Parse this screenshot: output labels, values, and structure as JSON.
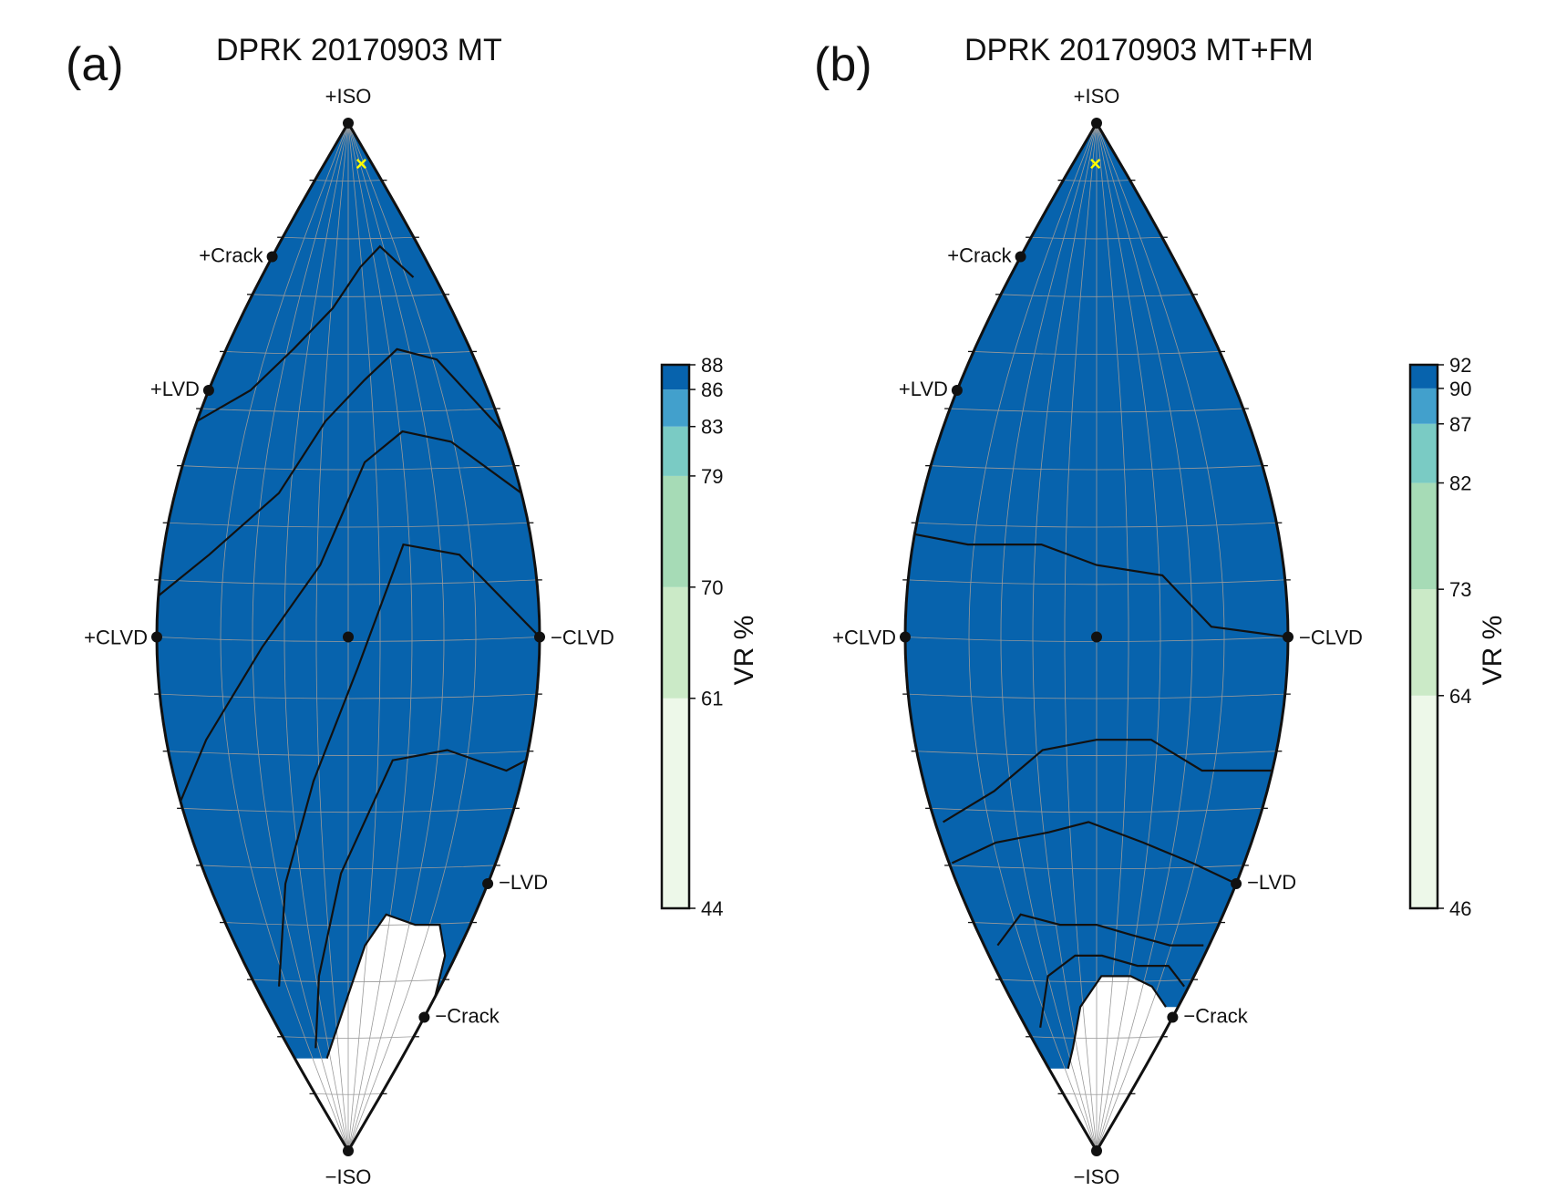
{
  "palette": {
    "edge": "#111111",
    "grid": "#9a9a9a",
    "marker": "#ffff00",
    "background": "#ffffff"
  },
  "chart_data": [
    {
      "type": "heatmap",
      "panel_label": "(a)",
      "title": "DPRK 20170903 MT",
      "projection": "Lune (source-type)",
      "colorbar": {
        "label": "VR %",
        "ticks": [
          44,
          61,
          70,
          79,
          83,
          86,
          88
        ],
        "bands": [
          {
            "from": 44,
            "to": 61,
            "color": "#edf8e9"
          },
          {
            "from": 61,
            "to": 70,
            "color": "#cbeac7"
          },
          {
            "from": 70,
            "to": 79,
            "color": "#a6dbb6"
          },
          {
            "from": 79,
            "to": 83,
            "color": "#7acbc4"
          },
          {
            "from": 83,
            "to": 86,
            "color": "#42a0cc"
          },
          {
            "from": 86,
            "to": 88,
            "color": "#0763ad"
          }
        ]
      },
      "contour_levels": [
        44,
        61,
        70,
        79,
        83,
        86
      ],
      "reference_points": [
        "+ISO",
        "+Crack",
        "+LVD",
        "+CLVD",
        "−CLVD",
        "−LVD",
        "−Crack",
        "−ISO"
      ],
      "best_fit_marker": "×"
    },
    {
      "type": "heatmap",
      "panel_label": "(b)",
      "title": "DPRK 20170903 MT+FM",
      "projection": "Lune (source-type)",
      "colorbar": {
        "label": "VR %",
        "ticks": [
          46,
          64,
          73,
          82,
          87,
          90,
          92
        ],
        "bands": [
          {
            "from": 46,
            "to": 64,
            "color": "#edf8e9"
          },
          {
            "from": 64,
            "to": 73,
            "color": "#cbeac7"
          },
          {
            "from": 73,
            "to": 82,
            "color": "#a6dbb6"
          },
          {
            "from": 82,
            "to": 87,
            "color": "#7acbc4"
          },
          {
            "from": 87,
            "to": 90,
            "color": "#42a0cc"
          },
          {
            "from": 90,
            "to": 92,
            "color": "#0763ad"
          }
        ]
      },
      "contour_levels": [
        46,
        64,
        73,
        82,
        87,
        90
      ],
      "reference_points": [
        "+ISO",
        "+Crack",
        "+LVD",
        "+CLVD",
        "−CLVD",
        "−LVD",
        "−Crack",
        "−ISO"
      ],
      "best_fit_marker": "×"
    }
  ]
}
